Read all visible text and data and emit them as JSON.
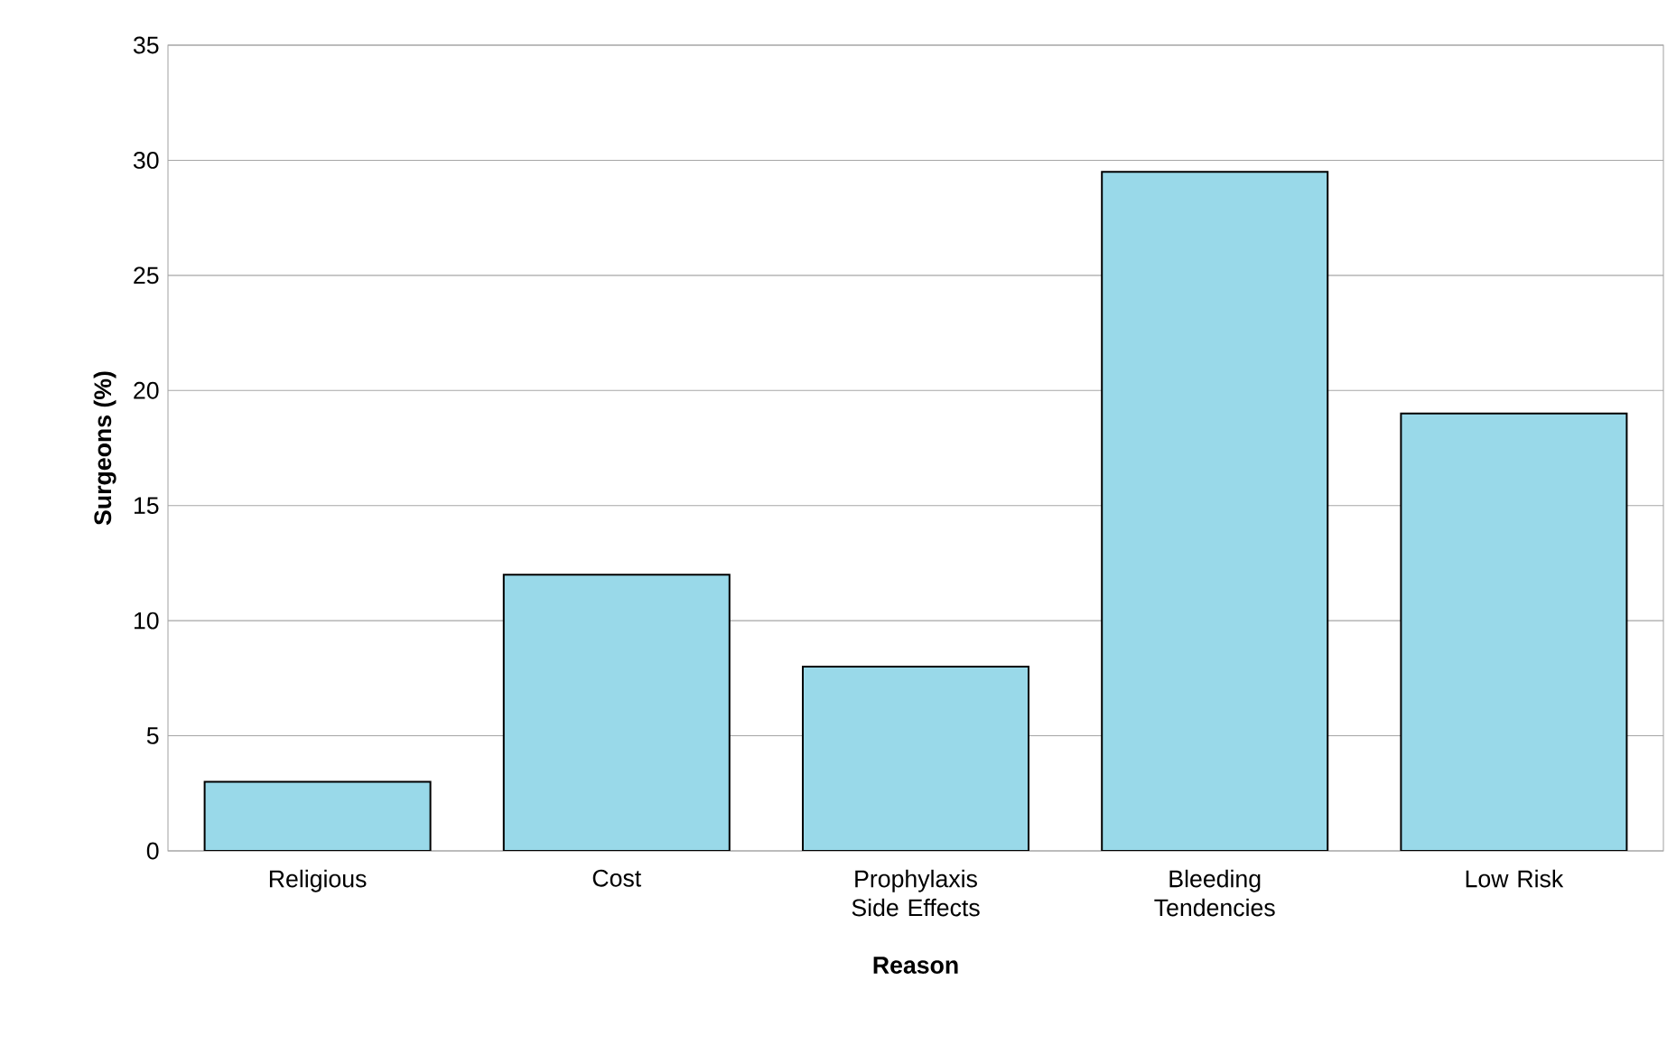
{
  "chart_data": {
    "type": "bar",
    "xlabel": "Reason",
    "ylabel": "Surgeons (%)",
    "categories": [
      "Religious",
      "Cost",
      "Prophylaxis Side Effects",
      "Bleeding Tendencies",
      "Low Risk"
    ],
    "values": [
      3,
      12,
      8,
      29.5,
      19
    ],
    "color": "#99d9e9",
    "ylim": [
      0,
      35
    ],
    "yticks": [
      0,
      5,
      10,
      15,
      20,
      25,
      30,
      35
    ],
    "grid": "y"
  }
}
